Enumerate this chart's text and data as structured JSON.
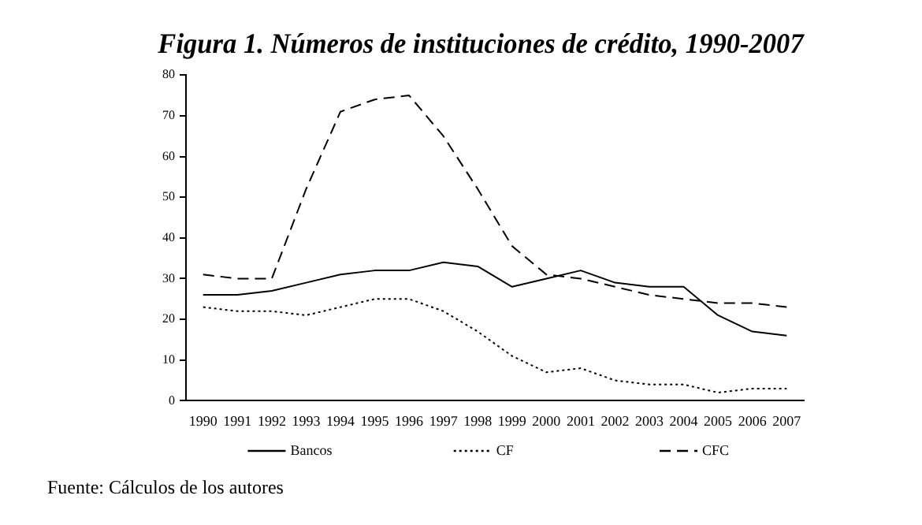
{
  "chart_data": {
    "type": "line",
    "title": "Figura 1. Números de instituciones de crédito, 1990-2007",
    "categories": [
      "1990",
      "1991",
      "1992",
      "1993",
      "1994",
      "1995",
      "1996",
      "1997",
      "1998",
      "1999",
      "2000",
      "2001",
      "2002",
      "2003",
      "2004",
      "2005",
      "2006",
      "2007"
    ],
    "series": [
      {
        "name": "Bancos",
        "color": "#000000",
        "line_style": "solid",
        "values": [
          26,
          26,
          27,
          29,
          31,
          32,
          32,
          34,
          33,
          28,
          30,
          32,
          29,
          28,
          28,
          21,
          17,
          16
        ]
      },
      {
        "name": "CF",
        "color": "#000000",
        "line_style": "dotted",
        "values": [
          23,
          22,
          22,
          21,
          23,
          25,
          25,
          22,
          17,
          11,
          7,
          8,
          5,
          4,
          4,
          2,
          3,
          3
        ]
      },
      {
        "name": "CFC",
        "color": "#000000",
        "line_style": "dashed",
        "values": [
          31,
          30,
          30,
          52,
          71,
          74,
          75,
          65,
          52,
          38,
          31,
          30,
          28,
          26,
          25,
          24,
          24,
          23
        ]
      }
    ],
    "ylim": [
      0,
      80
    ],
    "yticks": [
      0,
      10,
      20,
      30,
      40,
      50,
      60,
      70,
      80
    ],
    "grid": false,
    "legend": "bottom",
    "marker": "none",
    "annotations": [
      "Fuente: Cálculos de los autores"
    ]
  }
}
